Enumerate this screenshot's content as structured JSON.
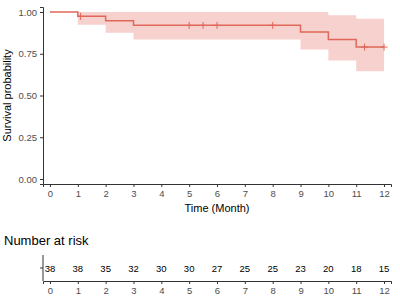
{
  "chart_data": [
    {
      "type": "step",
      "xlabel": "Time (Month)",
      "ylabel": "Survival probability",
      "x": [
        0,
        1,
        2,
        3,
        9,
        10,
        11,
        12
      ],
      "series": [
        {
          "color": "#e0685a",
          "values": [
            1.0,
            0.974,
            0.947,
            0.92,
            0.88,
            0.835,
            0.79,
            0.79
          ],
          "lower": [
            1.0,
            0.924,
            0.876,
            0.836,
            0.775,
            0.71,
            0.645,
            0.645
          ],
          "upper": [
            1.0,
            1.0,
            1.0,
            1.0,
            1.0,
            0.98,
            0.96,
            0.96
          ],
          "marker": "plus",
          "censored": {
            "x": [
              1.1,
              5,
              5.5,
              6,
              8,
              11.3,
              12
            ],
            "values": [
              0.974,
              0.92,
              0.92,
              0.92,
              0.92,
              0.79,
              0.79
            ]
          }
        }
      ],
      "xlim": [
        -0.25,
        12.25
      ],
      "xticks": [
        0,
        1,
        2,
        3,
        4,
        5,
        6,
        7,
        8,
        9,
        10,
        11,
        12
      ],
      "ylim": [
        -0.03,
        1.03
      ],
      "yticks": [
        {
          "value": 0,
          "label": "0.00"
        },
        {
          "value": 0.25,
          "label": "0.25"
        },
        {
          "value": 0.5,
          "label": "0.50"
        },
        {
          "value": 0.75,
          "label": "0.75"
        },
        {
          "value": 1,
          "label": "1.00"
        }
      ],
      "grid": false
    },
    {
      "type": "table",
      "title": "Number at risk",
      "x": [
        0,
        1,
        2,
        3,
        4,
        5,
        6,
        7,
        8,
        9,
        10,
        11,
        12
      ],
      "values": [
        38,
        38,
        35,
        32,
        30,
        30,
        27,
        25,
        25,
        23,
        20,
        18,
        15
      ],
      "xlim": [
        -0.25,
        12.25
      ],
      "xticks": [
        0,
        1,
        2,
        3,
        4,
        5,
        6,
        7,
        8,
        9,
        10,
        11,
        12
      ]
    }
  ]
}
